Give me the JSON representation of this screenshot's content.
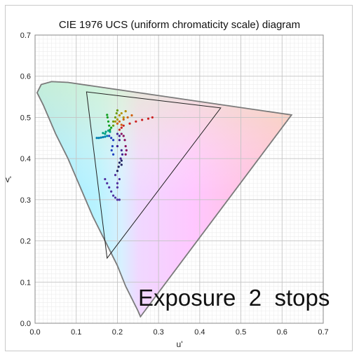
{
  "chart_data": {
    "type": "scatter",
    "title": "CIE 1976 UCS (uniform chromaticity scale) diagram",
    "xlabel": "u'",
    "ylabel": "v'",
    "xlim": [
      0,
      0.7
    ],
    "ylim": [
      0,
      0.7
    ],
    "x_ticks": [
      "0.0",
      "0.1",
      "0.2",
      "0.3",
      "0.4",
      "0.5",
      "0.6",
      "0.7"
    ],
    "y_ticks": [
      "0.0",
      "0.1",
      "0.2",
      "0.3",
      "0.4",
      "0.5",
      "0.6",
      "0.7"
    ],
    "grid": true,
    "overlay_text": "Exposure  2  stops",
    "spectral_locus": [
      [
        0.256,
        0.016
      ],
      [
        0.25,
        0.03
      ],
      [
        0.22,
        0.09
      ],
      [
        0.2,
        0.14
      ],
      [
        0.17,
        0.2
      ],
      [
        0.14,
        0.26
      ],
      [
        0.11,
        0.33
      ],
      [
        0.08,
        0.4
      ],
      [
        0.05,
        0.46
      ],
      [
        0.02,
        0.53
      ],
      [
        0.005,
        0.56
      ],
      [
        0.015,
        0.58
      ],
      [
        0.04,
        0.587
      ],
      [
        0.08,
        0.585
      ],
      [
        0.623,
        0.506
      ],
      [
        0.256,
        0.016
      ]
    ],
    "gamut_triangle": [
      [
        0.125,
        0.562
      ],
      [
        0.451,
        0.523
      ],
      [
        0.175,
        0.158
      ]
    ],
    "series": [
      {
        "color": "#cc2020",
        "points": [
          [
            0.215,
            0.48
          ],
          [
            0.23,
            0.485
          ],
          [
            0.245,
            0.49
          ],
          [
            0.26,
            0.494
          ],
          [
            0.275,
            0.497
          ],
          [
            0.285,
            0.5
          ],
          [
            0.21,
            0.475
          ],
          [
            0.205,
            0.47
          ]
        ]
      },
      {
        "color": "#d06010",
        "points": [
          [
            0.205,
            0.49
          ],
          [
            0.215,
            0.495
          ],
          [
            0.225,
            0.5
          ],
          [
            0.235,
            0.505
          ],
          [
            0.2,
            0.485
          ],
          [
            0.21,
            0.482
          ]
        ]
      },
      {
        "color": "#b09000",
        "points": [
          [
            0.2,
            0.495
          ],
          [
            0.205,
            0.505
          ],
          [
            0.21,
            0.51
          ],
          [
            0.22,
            0.515
          ],
          [
            0.215,
            0.5
          ],
          [
            0.195,
            0.49
          ]
        ]
      },
      {
        "color": "#6a9a00",
        "points": [
          [
            0.19,
            0.49
          ],
          [
            0.195,
            0.5
          ],
          [
            0.198,
            0.51
          ],
          [
            0.2,
            0.517
          ],
          [
            0.19,
            0.48
          ]
        ]
      },
      {
        "color": "#10a020",
        "points": [
          [
            0.18,
            0.48
          ],
          [
            0.178,
            0.49
          ],
          [
            0.176,
            0.5
          ],
          [
            0.175,
            0.506
          ],
          [
            0.182,
            0.47
          ],
          [
            0.185,
            0.475
          ]
        ]
      },
      {
        "color": "#00a080",
        "points": [
          [
            0.17,
            0.46
          ],
          [
            0.165,
            0.462
          ],
          [
            0.172,
            0.465
          ],
          [
            0.178,
            0.468
          ],
          [
            0.182,
            0.465
          ]
        ]
      },
      {
        "color": "#0080b0",
        "points": [
          [
            0.155,
            0.45
          ],
          [
            0.16,
            0.451
          ],
          [
            0.165,
            0.452
          ],
          [
            0.17,
            0.453
          ],
          [
            0.175,
            0.455
          ],
          [
            0.15,
            0.45
          ]
        ]
      },
      {
        "color": "#2040c0",
        "points": [
          [
            0.18,
            0.455
          ],
          [
            0.185,
            0.45
          ],
          [
            0.19,
            0.445
          ],
          [
            0.188,
            0.43
          ],
          [
            0.186,
            0.42
          ],
          [
            0.19,
            0.41
          ]
        ]
      },
      {
        "color": "#402090",
        "points": [
          [
            0.2,
            0.46
          ],
          [
            0.205,
            0.455
          ],
          [
            0.205,
            0.445
          ],
          [
            0.2,
            0.43
          ],
          [
            0.21,
            0.42
          ],
          [
            0.212,
            0.41
          ],
          [
            0.208,
            0.4
          ]
        ]
      },
      {
        "color": "#8a1060",
        "points": [
          [
            0.21,
            0.46
          ],
          [
            0.215,
            0.455
          ],
          [
            0.218,
            0.445
          ],
          [
            0.22,
            0.43
          ],
          [
            0.222,
            0.42
          ],
          [
            0.22,
            0.41
          ]
        ]
      },
      {
        "color": "#5030a0",
        "points": [
          [
            0.17,
            0.35
          ],
          [
            0.175,
            0.34
          ],
          [
            0.18,
            0.33
          ],
          [
            0.185,
            0.32
          ],
          [
            0.19,
            0.31
          ],
          [
            0.195,
            0.305
          ],
          [
            0.2,
            0.3
          ],
          [
            0.205,
            0.3
          ],
          [
            0.2,
            0.34
          ],
          [
            0.2,
            0.33
          ],
          [
            0.205,
            0.35
          ],
          [
            0.195,
            0.36
          ]
        ]
      },
      {
        "color": "#202060",
        "points": [
          [
            0.2,
            0.37
          ],
          [
            0.203,
            0.38
          ],
          [
            0.205,
            0.39
          ],
          [
            0.21,
            0.395
          ],
          [
            0.21,
            0.385
          ]
        ]
      }
    ]
  }
}
